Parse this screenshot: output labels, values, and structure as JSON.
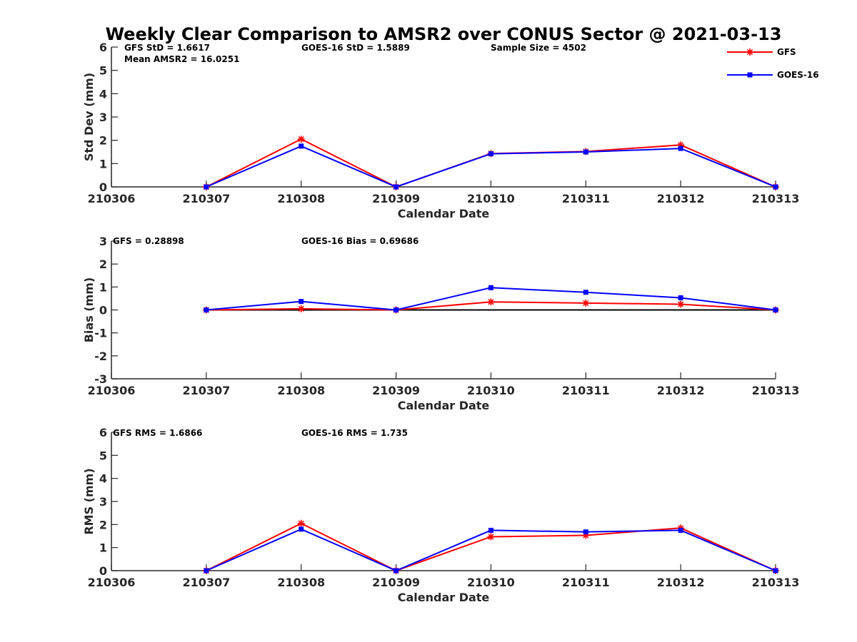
{
  "title": "Weekly Clear Comparison to AMSR2 over CONUS Sector @ 2021-03-13",
  "legend": {
    "placement": "top-right",
    "entries": [
      {
        "label": "GFS",
        "color": "#ff0000",
        "marker": "asterisk"
      },
      {
        "label": "GOES-16",
        "color": "#0000ff",
        "marker": "square"
      }
    ]
  },
  "colors": {
    "gfs": "#ff0000",
    "goes16": "#0000ff",
    "axis": "#262626",
    "zero_line": "#000000"
  },
  "chart_data": [
    {
      "type": "line",
      "xlabel": "Calendar Date",
      "ylabel": "Std Dev (mm)",
      "categories": [
        "210306",
        "210307",
        "210308",
        "210309",
        "210310",
        "210311",
        "210312",
        "210313"
      ],
      "ylim": [
        0,
        6
      ],
      "yticks": [
        "0",
        "1",
        "2",
        "3",
        "4",
        "5",
        "6"
      ],
      "annotations": [
        "GFS StD = 1.6617",
        "GOES-16 StD = 1.5889",
        "Sample Size = 4502",
        "Mean AMSR2 = 16.0251"
      ],
      "series": [
        {
          "name": "GFS",
          "x": [
            "210307",
            "210308",
            "210309",
            "210310",
            "210311",
            "210312",
            "210313"
          ],
          "values": [
            0,
            2.05,
            0,
            1.43,
            1.52,
            1.8,
            0
          ]
        },
        {
          "name": "GOES-16",
          "x": [
            "210307",
            "210308",
            "210309",
            "210310",
            "210311",
            "210312",
            "210313"
          ],
          "values": [
            0,
            1.75,
            0,
            1.42,
            1.5,
            1.65,
            0
          ]
        }
      ]
    },
    {
      "type": "line",
      "xlabel": "Calendar Date",
      "ylabel": "Bias (mm)",
      "categories": [
        "210306",
        "210307",
        "210308",
        "210309",
        "210310",
        "210311",
        "210312",
        "210313"
      ],
      "ylim": [
        -3,
        3
      ],
      "yticks": [
        "-3",
        "-2",
        "-1",
        "0",
        "1",
        "2",
        "3"
      ],
      "zero_line": true,
      "annotations": [
        "GFS = 0.28898",
        "GOES-16 Bias  = 0.69686"
      ],
      "series": [
        {
          "name": "GFS",
          "x": [
            "210307",
            "210308",
            "210309",
            "210310",
            "210311",
            "210312",
            "210313"
          ],
          "values": [
            0,
            0.05,
            0,
            0.35,
            0.3,
            0.25,
            0
          ]
        },
        {
          "name": "GOES-16",
          "x": [
            "210307",
            "210308",
            "210309",
            "210310",
            "210311",
            "210312",
            "210313"
          ],
          "values": [
            0,
            0.37,
            0,
            0.97,
            0.77,
            0.53,
            0
          ]
        }
      ]
    },
    {
      "type": "line",
      "xlabel": "Calendar Date",
      "ylabel": "RMS (mm)",
      "categories": [
        "210306",
        "210307",
        "210308",
        "210309",
        "210310",
        "210311",
        "210312",
        "210313"
      ],
      "ylim": [
        0,
        6
      ],
      "yticks": [
        "0",
        "1",
        "2",
        "3",
        "4",
        "5",
        "6"
      ],
      "annotations": [
        "GFS RMS = 1.6866",
        "GOES-16 RMS = 1.735"
      ],
      "series": [
        {
          "name": "GFS",
          "x": [
            "210307",
            "210308",
            "210309",
            "210310",
            "210311",
            "210312",
            "210313"
          ],
          "values": [
            0,
            2.05,
            0,
            1.47,
            1.53,
            1.85,
            0
          ]
        },
        {
          "name": "GOES-16",
          "x": [
            "210307",
            "210308",
            "210309",
            "210310",
            "210311",
            "210312",
            "210313"
          ],
          "values": [
            0,
            1.8,
            0,
            1.75,
            1.68,
            1.75,
            0
          ]
        }
      ]
    }
  ]
}
